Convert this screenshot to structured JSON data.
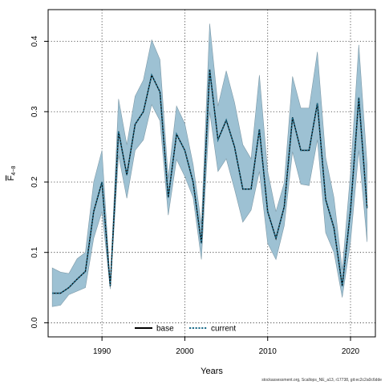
{
  "chart_data": {
    "type": "line",
    "xlabel": "Years",
    "ylabel_main": "F",
    "ylabel_sub": "4−8",
    "xlim": [
      1983.5,
      2023
    ],
    "ylim": [
      -0.02,
      0.445
    ],
    "x_ticks": [
      1990,
      2000,
      2010,
      2020
    ],
    "y_ticks": [
      0.0,
      0.1,
      0.2,
      0.3,
      0.4
    ],
    "y_tick_labels": [
      "0.0",
      "0.1",
      "0.2",
      "0.3",
      "0.4"
    ],
    "grid": true,
    "legend_position": "bottom-center",
    "band_color": "#9dc1d3",
    "band_edge_color": "#7e9aa8",
    "x": [
      1984,
      1985,
      1986,
      1987,
      1988,
      1989,
      1990,
      1991,
      1992,
      1993,
      1994,
      1995,
      1996,
      1997,
      1998,
      1999,
      2000,
      2001,
      2002,
      2003,
      2004,
      2005,
      2006,
      2007,
      2008,
      2009,
      2010,
      2011,
      2012,
      2013,
      2014,
      2015,
      2016,
      2017,
      2018,
      2019,
      2020,
      2021,
      2022
    ],
    "band_upper": [
      0.078,
      0.072,
      0.07,
      0.091,
      0.1,
      0.2,
      0.245,
      0.055,
      0.318,
      0.253,
      0.322,
      0.345,
      0.402,
      0.374,
      0.205,
      0.308,
      0.283,
      0.225,
      0.14,
      0.425,
      0.308,
      0.358,
      0.313,
      0.253,
      0.233,
      0.352,
      0.215,
      0.158,
      0.199,
      0.35,
      0.305,
      0.305,
      0.385,
      0.235,
      0.178,
      0.075,
      0.213,
      0.395,
      0.225
    ],
    "band_lower": [
      0.023,
      0.025,
      0.04,
      0.045,
      0.05,
      0.12,
      0.158,
      0.048,
      0.238,
      0.177,
      0.245,
      0.26,
      0.31,
      0.287,
      0.153,
      0.232,
      0.208,
      0.178,
      0.09,
      0.3,
      0.215,
      0.233,
      0.19,
      0.143,
      0.16,
      0.215,
      0.113,
      0.09,
      0.138,
      0.243,
      0.197,
      0.195,
      0.26,
      0.128,
      0.1,
      0.036,
      0.115,
      0.245,
      0.115
    ],
    "series": [
      {
        "name": "base",
        "color": "#000000",
        "style": "solid",
        "values": [
          0.042,
          0.042,
          0.05,
          0.062,
          0.073,
          0.158,
          0.2,
          0.052,
          0.272,
          0.21,
          0.282,
          0.3,
          0.352,
          0.328,
          0.178,
          0.268,
          0.245,
          0.2,
          0.113,
          0.36,
          0.26,
          0.288,
          0.25,
          0.19,
          0.19,
          0.275,
          0.158,
          0.12,
          0.165,
          0.292,
          0.245,
          0.245,
          0.312,
          0.175,
          0.135,
          0.052,
          0.16,
          0.32,
          0.163
        ]
      },
      {
        "name": "current",
        "color": "#1f6e8c",
        "style": "dotted",
        "values": [
          0.042,
          0.042,
          0.05,
          0.062,
          0.073,
          0.158,
          0.2,
          0.052,
          0.272,
          0.21,
          0.282,
          0.3,
          0.352,
          0.328,
          0.178,
          0.268,
          0.245,
          0.2,
          0.113,
          0.36,
          0.26,
          0.288,
          0.25,
          0.19,
          0.19,
          0.275,
          0.158,
          0.12,
          0.165,
          0.292,
          0.245,
          0.245,
          0.312,
          0.175,
          0.135,
          0.052,
          0.16,
          0.32,
          0.163
        ]
      }
    ]
  },
  "footer_text": "stockassessment.org, Scallops_NE_a13, r17738, git:ec2c2a0c6dde"
}
